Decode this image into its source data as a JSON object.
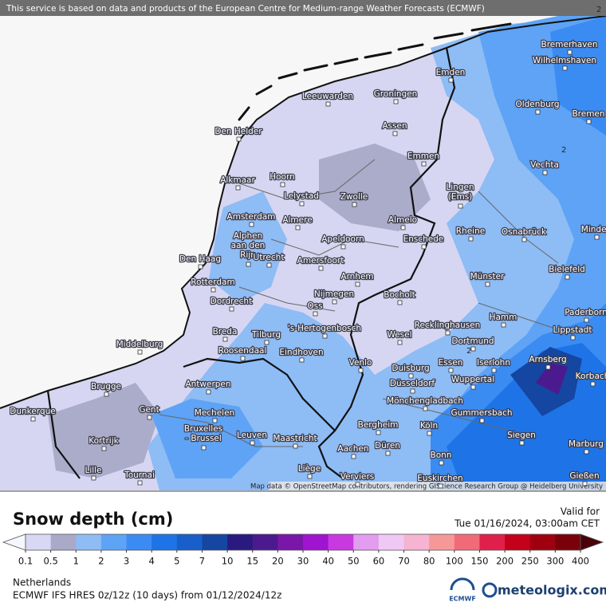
{
  "header": {
    "notice": "This service is based on data and products of the European Centre for Medium-range Weather Forecasts (ECMWF)"
  },
  "map": {
    "cities": [
      "Bremerhaven",
      "Wilhelmshaven",
      "Emden",
      "Leeuwarden",
      "Groningen",
      "Oldenburg",
      "Bremen",
      "Den Helder",
      "Assen",
      "Emmen",
      "Vechta",
      "Alkmaar",
      "Hoorn",
      "Lelystad",
      "Zwolle",
      [
        "Lingen",
        "(Ems)"
      ],
      "Amsterdam",
      "Almere",
      "Almelo",
      [
        "Alphen",
        "aan den",
        "Rijn"
      ],
      "Apeldoorn",
      "Enschede",
      "Rheine",
      "Osnabrück",
      "Minden",
      "Den Haag",
      "Utrecht",
      "Amersfoort",
      "Bielefeld",
      "Arnhem",
      "Münster",
      "Rotterdam",
      "Nijmegen",
      "Bocholt",
      "Dordrecht",
      "Oss",
      "Hamm",
      "Paderborn",
      "Recklinghausen",
      "Breda",
      "'s-Hertogenbosch",
      "Wesel",
      "Lippstadt",
      "Middelburg",
      "Tilburg",
      "Dortmund",
      "Roosendaal",
      "Eindhoven",
      "Arnsberg",
      "Iserlohn",
      "Essen",
      "Venlo",
      "Duisburg",
      "Korbach",
      "Wuppertal",
      "Antwerpen",
      "Düsseldorf",
      "Brugge",
      "Mönchengladbach",
      "Dunkerque",
      "Gent",
      "Mechelen",
      "Gummersbach",
      "Bergheim",
      "Köln",
      [
        "Bruxelles",
        "- Brussel"
      ],
      "Leuven",
      "Maastricht",
      "Siegen",
      "Kortrijk",
      "Düren",
      "Marburg",
      "Aachen",
      "Bonn",
      "Lille",
      "Liège",
      "Tournai",
      "Verviers",
      "Euskirchen",
      "Gießen"
    ],
    "contour_labels": [
      "2",
      "2",
      "2"
    ],
    "attribution": "Map data © OpenStreetMap contributors, rendering GIScience Research Group @ Heidelberg University"
  },
  "legend": {
    "title": "Snow depth (cm)",
    "valid_label": "Valid for",
    "valid_time": "Tue 01/16/2024, 03:00am CET",
    "ticks": [
      0.1,
      0.5,
      1,
      2,
      3,
      4,
      5,
      7,
      10,
      15,
      20,
      30,
      40,
      50,
      60,
      70,
      80,
      100,
      150,
      200,
      250,
      300,
      400
    ],
    "under_color": "#f6f6ff",
    "colors": [
      "#d8d8f4",
      "#a9a9c9",
      "#8ebcf5",
      "#5ea3f5",
      "#3b8cf2",
      "#1e74e6",
      "#195fc9",
      "#1446a2",
      "#2a1a80",
      "#4b1a8e",
      "#7a16a8",
      "#a014d0",
      "#c83ae0",
      "#e29cf0",
      "#f0c8f4",
      "#f6b4d2",
      "#f79898",
      "#f06a7a",
      "#e0204a",
      "#c4001a",
      "#9e0010",
      "#7a000a"
    ],
    "over_color": "#4a0008"
  },
  "footer": {
    "region": "Netherlands",
    "model": "ECMWF IFS HRES 0z/12z (10 days) from  01/12/2024/12z",
    "ecmwf_logo": "ECMWF",
    "brand": "meteologix.com"
  }
}
